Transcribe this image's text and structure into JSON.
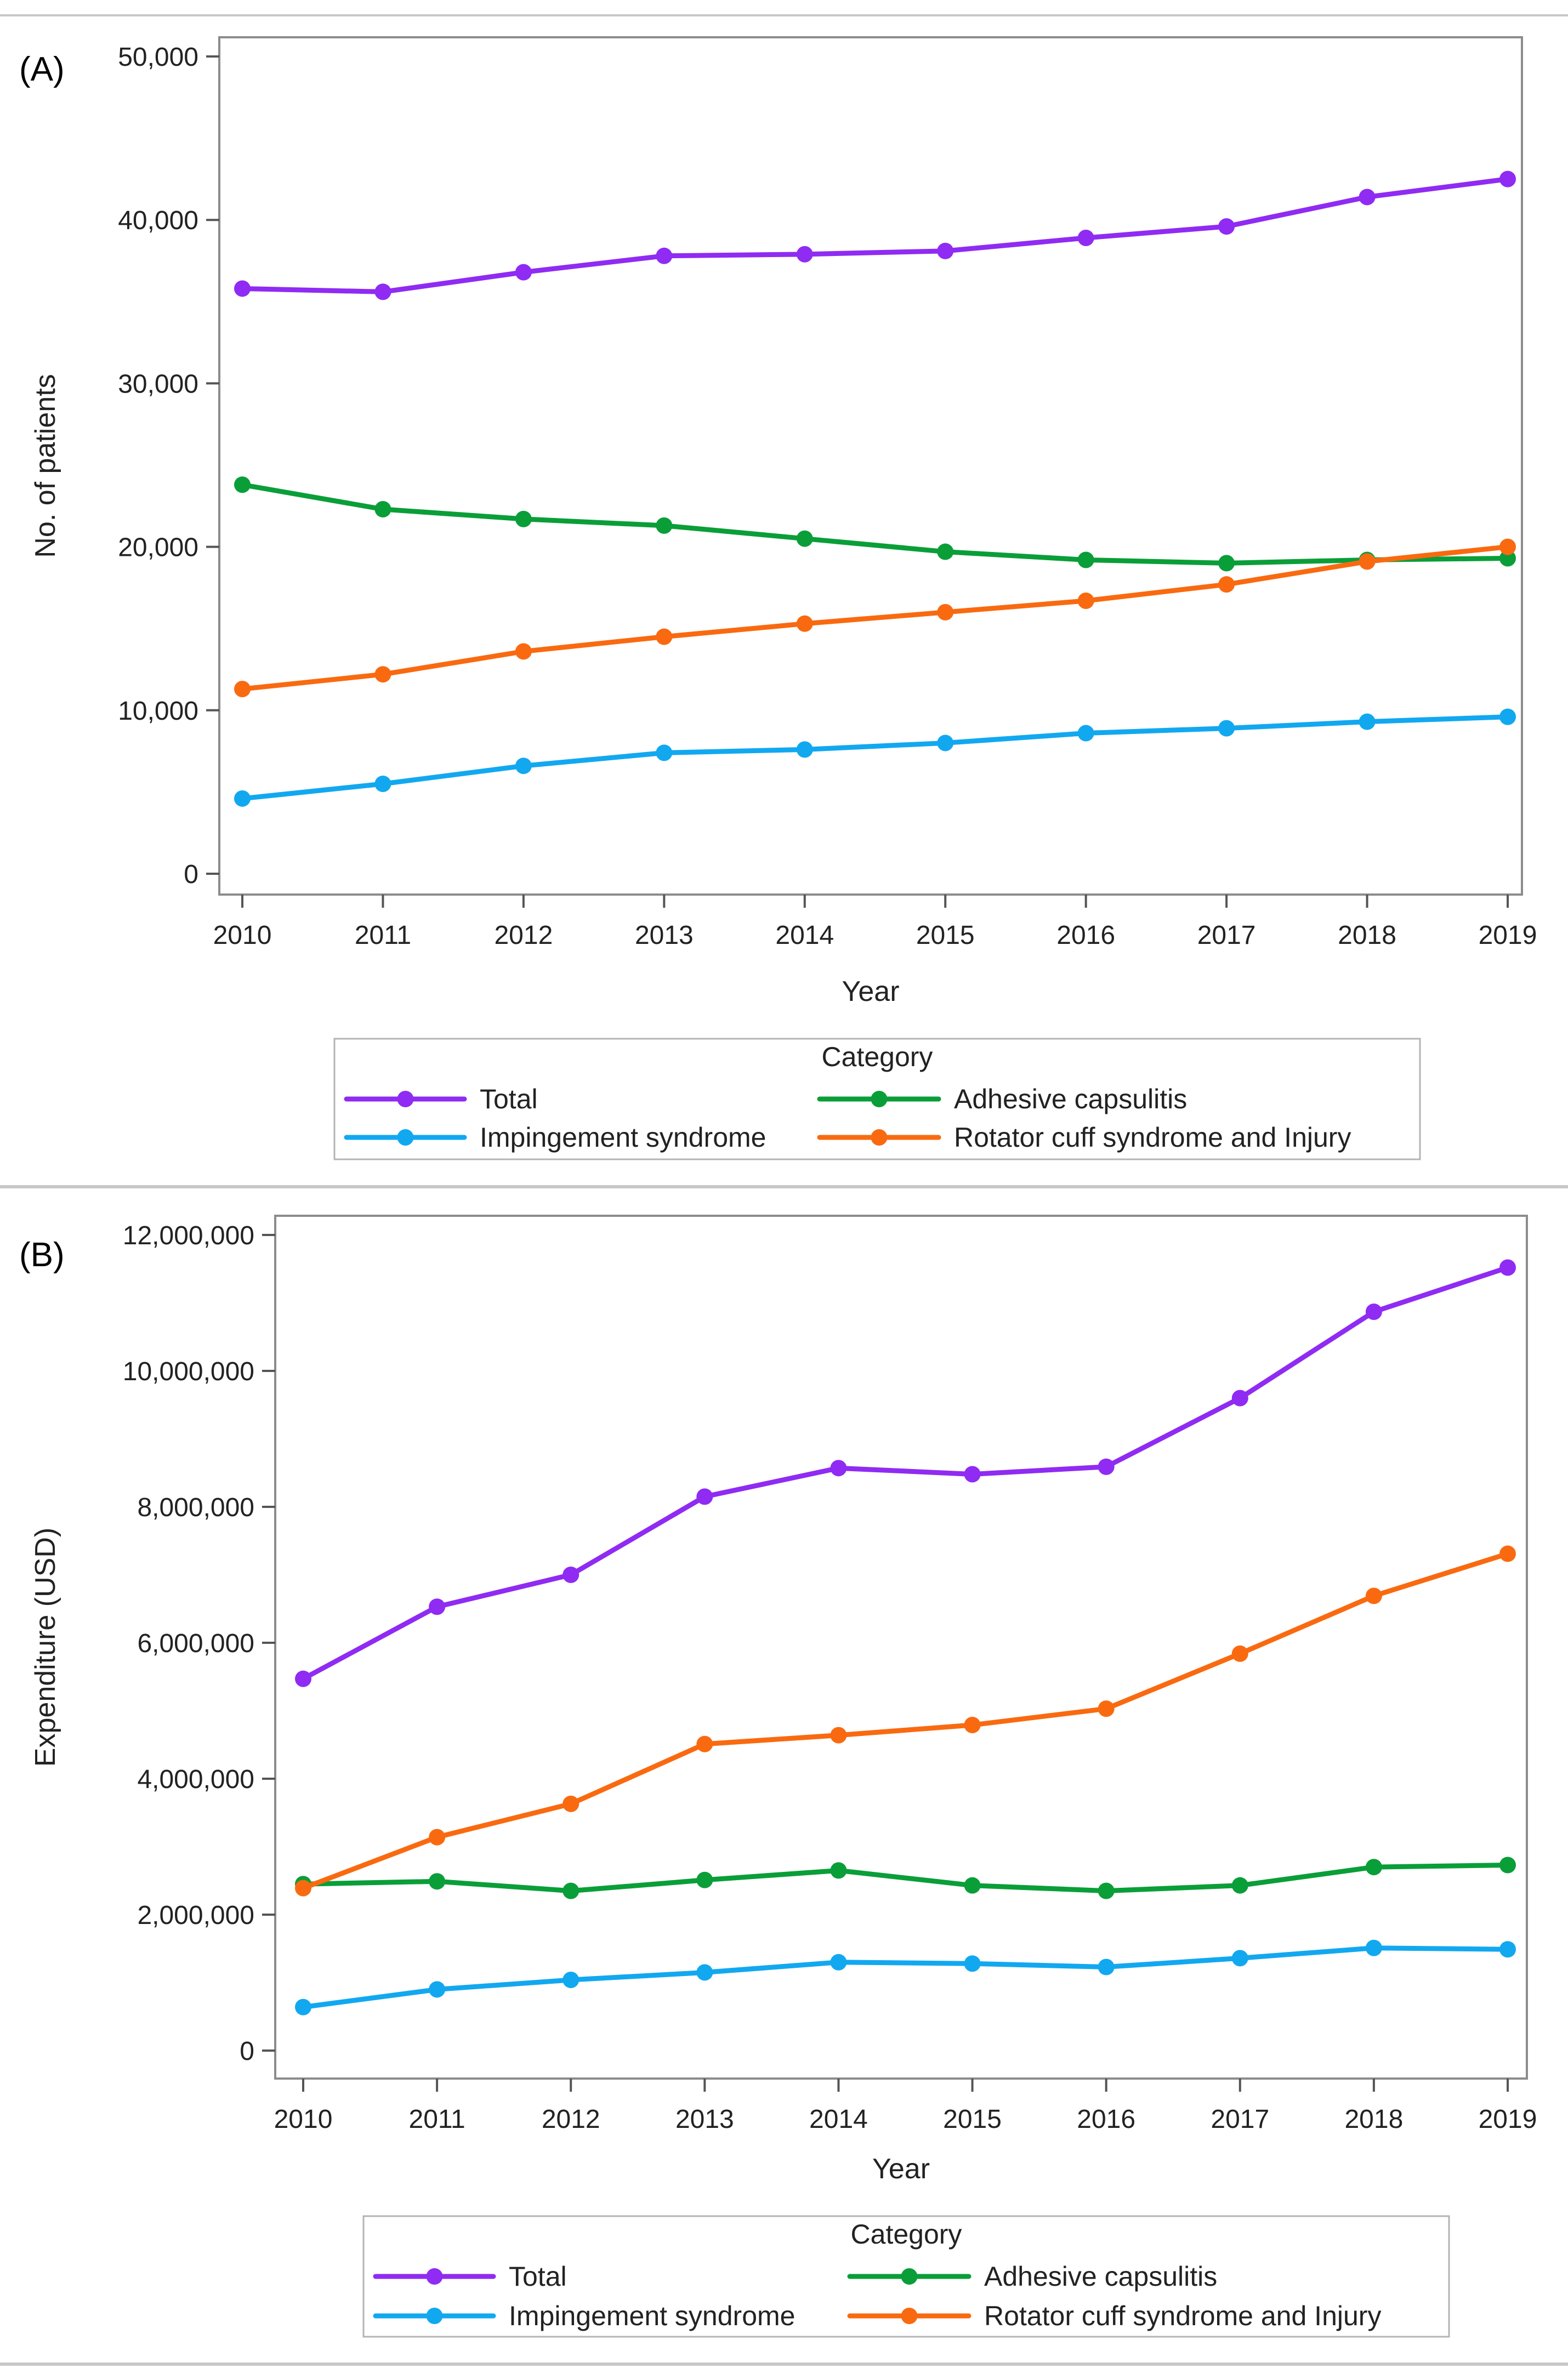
{
  "chart_data": [
    {
      "type": "line",
      "panel_label": "(A)",
      "title": "",
      "xlabel": "Year",
      "ylabel": "No. of patients",
      "x": [
        2010,
        2011,
        2012,
        2013,
        2014,
        2015,
        2016,
        2017,
        2018,
        2019
      ],
      "ylim": [
        0,
        50000
      ],
      "yticks": [
        0,
        10000,
        20000,
        30000,
        40000,
        50000
      ],
      "ytick_labels": [
        "0",
        "10,000",
        "20,000",
        "30,000",
        "40,000",
        "50,000"
      ],
      "grid": false,
      "legend": {
        "title": "Category",
        "position": "bottom",
        "entries": [
          "Total",
          "Adhesive capsulitis",
          "Impingement syndrome",
          "Rotator cuff syndrome and Injury"
        ]
      },
      "series": [
        {
          "name": "Total",
          "color": "#8F2BF2",
          "values": [
            35800,
            35600,
            36800,
            37800,
            37900,
            38100,
            38900,
            39600,
            41400,
            42500
          ]
        },
        {
          "name": "Adhesive capsulitis",
          "color": "#0A9E38",
          "values": [
            23800,
            22300,
            21700,
            21300,
            20500,
            19700,
            19200,
            19000,
            19200,
            19300
          ]
        },
        {
          "name": "Impingement syndrome",
          "color": "#12A8F0",
          "values": [
            4600,
            5500,
            6600,
            7400,
            7600,
            8000,
            8600,
            8900,
            9300,
            9600
          ]
        },
        {
          "name": "Rotator cuff syndrome and Injury",
          "color": "#F96A10",
          "values": [
            11300,
            12200,
            13600,
            14500,
            15300,
            16000,
            16700,
            17700,
            19100,
            20000
          ]
        }
      ]
    },
    {
      "type": "line",
      "panel_label": "(B)",
      "title": "",
      "xlabel": "Year",
      "ylabel": "Expenditure (USD)",
      "x": [
        2010,
        2011,
        2012,
        2013,
        2014,
        2015,
        2016,
        2017,
        2018,
        2019
      ],
      "ylim": [
        0,
        12000000
      ],
      "yticks": [
        0,
        2000000,
        4000000,
        6000000,
        8000000,
        10000000,
        12000000
      ],
      "ytick_labels": [
        "0",
        "2,000,000",
        "4,000,000",
        "6,000,000",
        "8,000,000",
        "10,000,000",
        "12,000,000"
      ],
      "grid": false,
      "legend": {
        "title": "Category",
        "position": "bottom",
        "entries": [
          "Total",
          "Adhesive capsulitis",
          "Impingement syndrome",
          "Rotator cuff syndrome and Injury"
        ]
      },
      "series": [
        {
          "name": "Total",
          "color": "#8F2BF2",
          "values": [
            5470000,
            6530000,
            7000000,
            8150000,
            8570000,
            8480000,
            8590000,
            9600000,
            10870000,
            11520000
          ]
        },
        {
          "name": "Adhesive capsulitis",
          "color": "#0A9E38",
          "values": [
            2450000,
            2490000,
            2350000,
            2510000,
            2650000,
            2430000,
            2350000,
            2430000,
            2700000,
            2730000
          ]
        },
        {
          "name": "Impingement syndrome",
          "color": "#12A8F0",
          "values": [
            640000,
            900000,
            1040000,
            1150000,
            1300000,
            1280000,
            1230000,
            1360000,
            1510000,
            1490000
          ]
        },
        {
          "name": "Rotator cuff syndrome and Injury",
          "color": "#F96A10",
          "values": [
            2390000,
            3140000,
            3630000,
            4510000,
            4640000,
            4790000,
            5030000,
            5840000,
            6690000,
            7310000
          ]
        }
      ]
    }
  ]
}
